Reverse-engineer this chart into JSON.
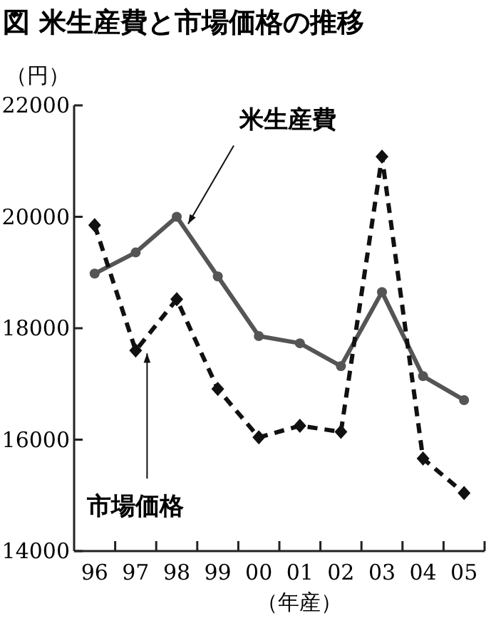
{
  "chart_data": {
    "type": "line",
    "title": "図  米生産費と市場価格の推移",
    "ylabel": "（円）",
    "xlabel": "（年産）",
    "categories": [
      "96",
      "97",
      "98",
      "99",
      "00",
      "01",
      "02",
      "03",
      "04",
      "05"
    ],
    "ylim": [
      14000,
      22000
    ],
    "yticks": [
      14000,
      16000,
      18000,
      20000,
      22000
    ],
    "grid": false,
    "series": [
      {
        "name": "米生産費",
        "color": "#555555",
        "marker": "circle",
        "line_style": "solid",
        "values": [
          18980,
          19360,
          20000,
          18930,
          17860,
          17730,
          17320,
          18650,
          17140,
          16710
        ]
      },
      {
        "name": "市場価格",
        "color": "#111111",
        "marker": "diamond",
        "line_style": "dashed",
        "values": [
          19850,
          17600,
          18520,
          16910,
          16040,
          16250,
          16140,
          21080,
          15660,
          15040
        ]
      }
    ]
  }
}
